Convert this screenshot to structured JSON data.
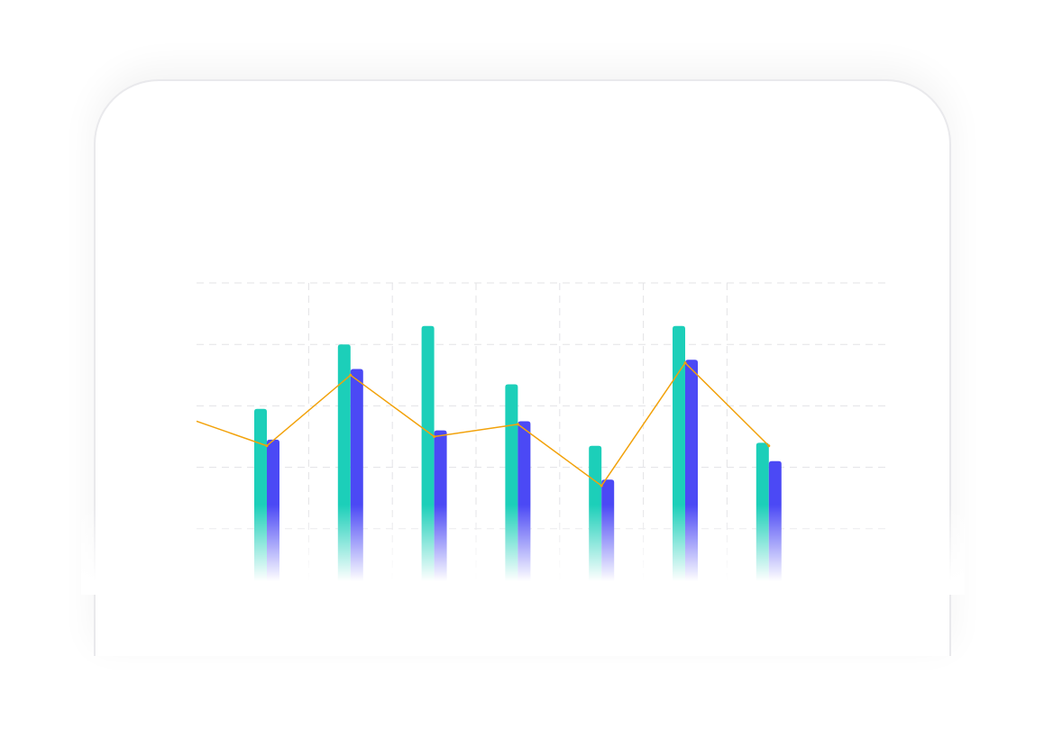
{
  "chart_data": {
    "type": "bar",
    "categories": [
      "",
      "",
      "",
      "",
      "",
      "",
      ""
    ],
    "series": [
      {
        "values": [
          59,
          80,
          86,
          67,
          47,
          86,
          48
        ],
        "color": "#1ccfb9",
        "kind": "bar"
      },
      {
        "values": [
          49,
          72,
          52,
          55,
          36,
          75,
          42
        ],
        "color": "#4b49f5",
        "kind": "bar"
      },
      {
        "values": [
          47,
          70,
          50,
          54,
          34,
          74,
          47
        ],
        "color": "#f2a20b",
        "kind": "line"
      }
    ],
    "ylim": [
      0,
      100
    ],
    "title": "",
    "xlabel": "",
    "ylabel": "",
    "grid": true,
    "legend": "none"
  }
}
